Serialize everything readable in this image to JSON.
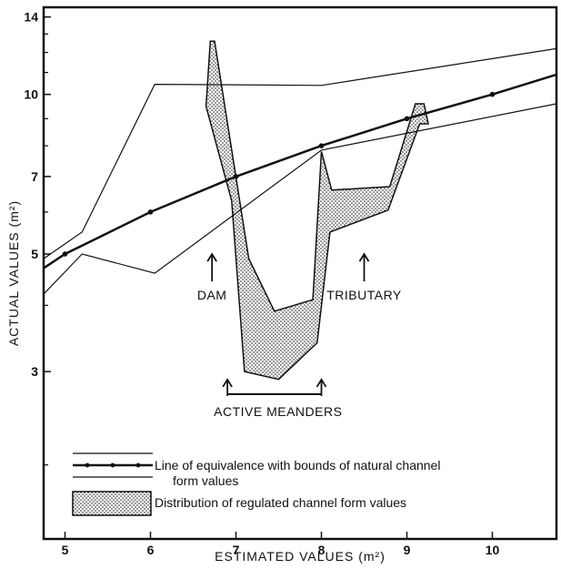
{
  "chart_data": {
    "type": "line",
    "xlabel": "ESTIMATED VALUES (m²)",
    "ylabel": "ACTUAL VALUES (m²)",
    "x_scale": "linear",
    "y_scale": "log",
    "xlim": [
      4.75,
      10.75
    ],
    "ylim": [
      1.45,
      14.6
    ],
    "x_ticks": [
      5,
      6,
      7,
      8,
      9,
      10
    ],
    "y_ticks": [
      3,
      5,
      7,
      10,
      14
    ],
    "series": [
      {
        "style": "equivalence",
        "points": [
          [
            4.75,
            4.7
          ],
          [
            5,
            5
          ],
          [
            6,
            6
          ],
          [
            7,
            7
          ],
          [
            8,
            8
          ],
          [
            9,
            9
          ],
          [
            10,
            10
          ],
          [
            10.75,
            10.9
          ]
        ]
      },
      {
        "style": "upper-bound",
        "points": [
          [
            4.75,
            4.9
          ],
          [
            5.2,
            5.5
          ],
          [
            6.05,
            10.45
          ],
          [
            8,
            10.4
          ],
          [
            10.75,
            12.2
          ]
        ]
      },
      {
        "style": "lower-bound",
        "points": [
          [
            4.75,
            4.2
          ],
          [
            5.2,
            5.0
          ],
          [
            6.05,
            4.6
          ],
          [
            8,
            7.85
          ],
          [
            10.75,
            9.6
          ]
        ]
      },
      {
        "style": "regulated-distribution",
        "polygon": [
          [
            6.7,
            12.6
          ],
          [
            6.65,
            9.5
          ],
          [
            6.95,
            6.3
          ],
          [
            7.1,
            3.0
          ],
          [
            7.5,
            2.9
          ],
          [
            7.95,
            3.4
          ],
          [
            8.1,
            5.5
          ],
          [
            8.78,
            6.05
          ],
          [
            9.15,
            8.8
          ],
          [
            9.25,
            8.8
          ],
          [
            9.2,
            9.6
          ],
          [
            9.1,
            9.6
          ],
          [
            8.8,
            6.7
          ],
          [
            8.12,
            6.6
          ],
          [
            8.0,
            7.8
          ],
          [
            7.9,
            4.1
          ],
          [
            7.45,
            3.9
          ],
          [
            7.15,
            4.9
          ],
          [
            6.75,
            12.6
          ]
        ]
      }
    ],
    "annotations": [
      {
        "text": "DAM",
        "x": 6.72,
        "y": 4.3,
        "arrow": "up"
      },
      {
        "text": "TRIBUTARY",
        "x": 8.5,
        "y": 4.3,
        "arrow": "up"
      },
      {
        "text": "ACTIVE MEANDERS",
        "x": [
          6.9,
          8.0
        ],
        "y": 2.72,
        "arrow": "span"
      }
    ],
    "legend": {
      "placement": "bottom-left",
      "entries": [
        "Line of equivalence with bounds of natural channel",
        "form values",
        "Distribution of regulated channel form values"
      ]
    },
    "colors": {
      "ink": "#111111",
      "fill": "#ffffff",
      "background": "#ffffff"
    }
  }
}
